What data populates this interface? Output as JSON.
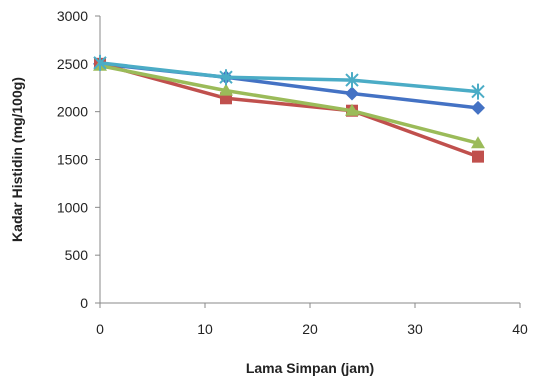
{
  "chart_data": {
    "type": "line",
    "title": "",
    "xlabel": "Lama Simpan (jam)",
    "ylabel": "Kadar Histidin (mg/100g)",
    "xlim": [
      0,
      40
    ],
    "ylim": [
      0,
      3000
    ],
    "x_ticks": [
      "0",
      "10",
      "20",
      "30",
      "40"
    ],
    "y_ticks": [
      "0",
      "500",
      "1000",
      "1500",
      "2000",
      "2500",
      "3000"
    ],
    "x_tick_values": [
      0,
      10,
      20,
      30,
      40
    ],
    "y_tick_values": [
      0,
      500,
      1000,
      1500,
      2000,
      2500,
      3000
    ],
    "grid": false,
    "legend": "none",
    "x": [
      0,
      12,
      24,
      36
    ],
    "series": [
      {
        "values": [
          2500,
          2360,
          2190,
          2040
        ],
        "color": "#4472C4",
        "marker": "diamond"
      },
      {
        "values": [
          2500,
          2140,
          2010,
          1530
        ],
        "color": "#C0504D",
        "marker": "square"
      },
      {
        "values": [
          2480,
          2220,
          2010,
          1670
        ],
        "color": "#9BBB59",
        "marker": "triangle"
      },
      {
        "values": [
          2510,
          2360,
          2330,
          2210
        ],
        "color": "#4BACC6",
        "marker": "star"
      }
    ]
  }
}
